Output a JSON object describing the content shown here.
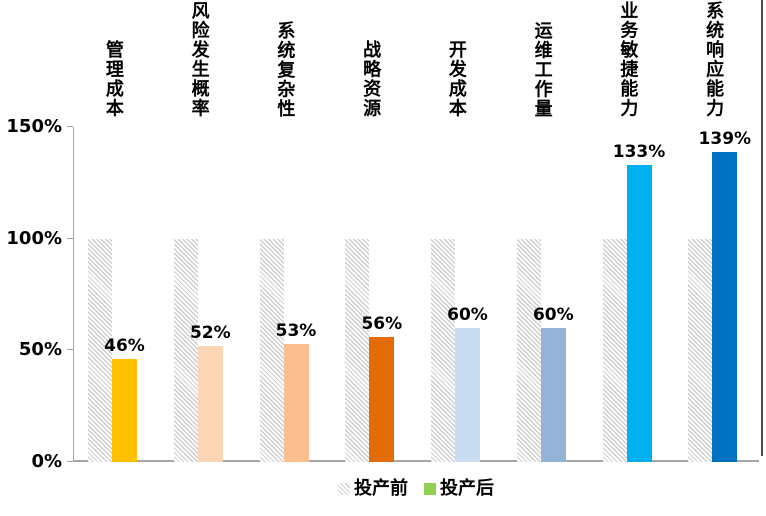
{
  "chart_data": {
    "type": "bar",
    "title": "",
    "categories": [
      "管理成本",
      "风险发生概率",
      "系统复杂性",
      "战略资源",
      "开发成本",
      "运维工作量",
      "业务敏捷能力",
      "系统响应能力"
    ],
    "series": [
      {
        "name": "投产前",
        "values": [
          100,
          100,
          100,
          100,
          100,
          100,
          100,
          100
        ],
        "style": "hatched",
        "hatch_line_color": "#C4C4C4",
        "hatch_bg_color": "#FBFBFB"
      },
      {
        "name": "投产后",
        "values": [
          46,
          52,
          53,
          56,
          60,
          60,
          133,
          139
        ],
        "bar_colors": [
          "#FFC000",
          "#FCD5B4",
          "#FABF8F",
          "#E36C09",
          "#C9DCF2",
          "#95B3D7",
          "#00B0F0",
          "#0070C0"
        ],
        "legend_color": "#92D050"
      }
    ],
    "data_labels": [
      "46%",
      "52%",
      "53%",
      "56%",
      "60%",
      "60%",
      "133%",
      "139%"
    ],
    "yticks": [
      {
        "pct": 0,
        "label": "0%"
      },
      {
        "pct": 50,
        "label": "50%"
      },
      {
        "pct": 100,
        "label": "100%"
      },
      {
        "pct": 150,
        "label": "150%"
      }
    ],
    "ylim": [
      0,
      150
    ],
    "grid": false,
    "legend_position": "bottom",
    "axis_color": "#A6A6A6",
    "text_color": "#000000"
  }
}
